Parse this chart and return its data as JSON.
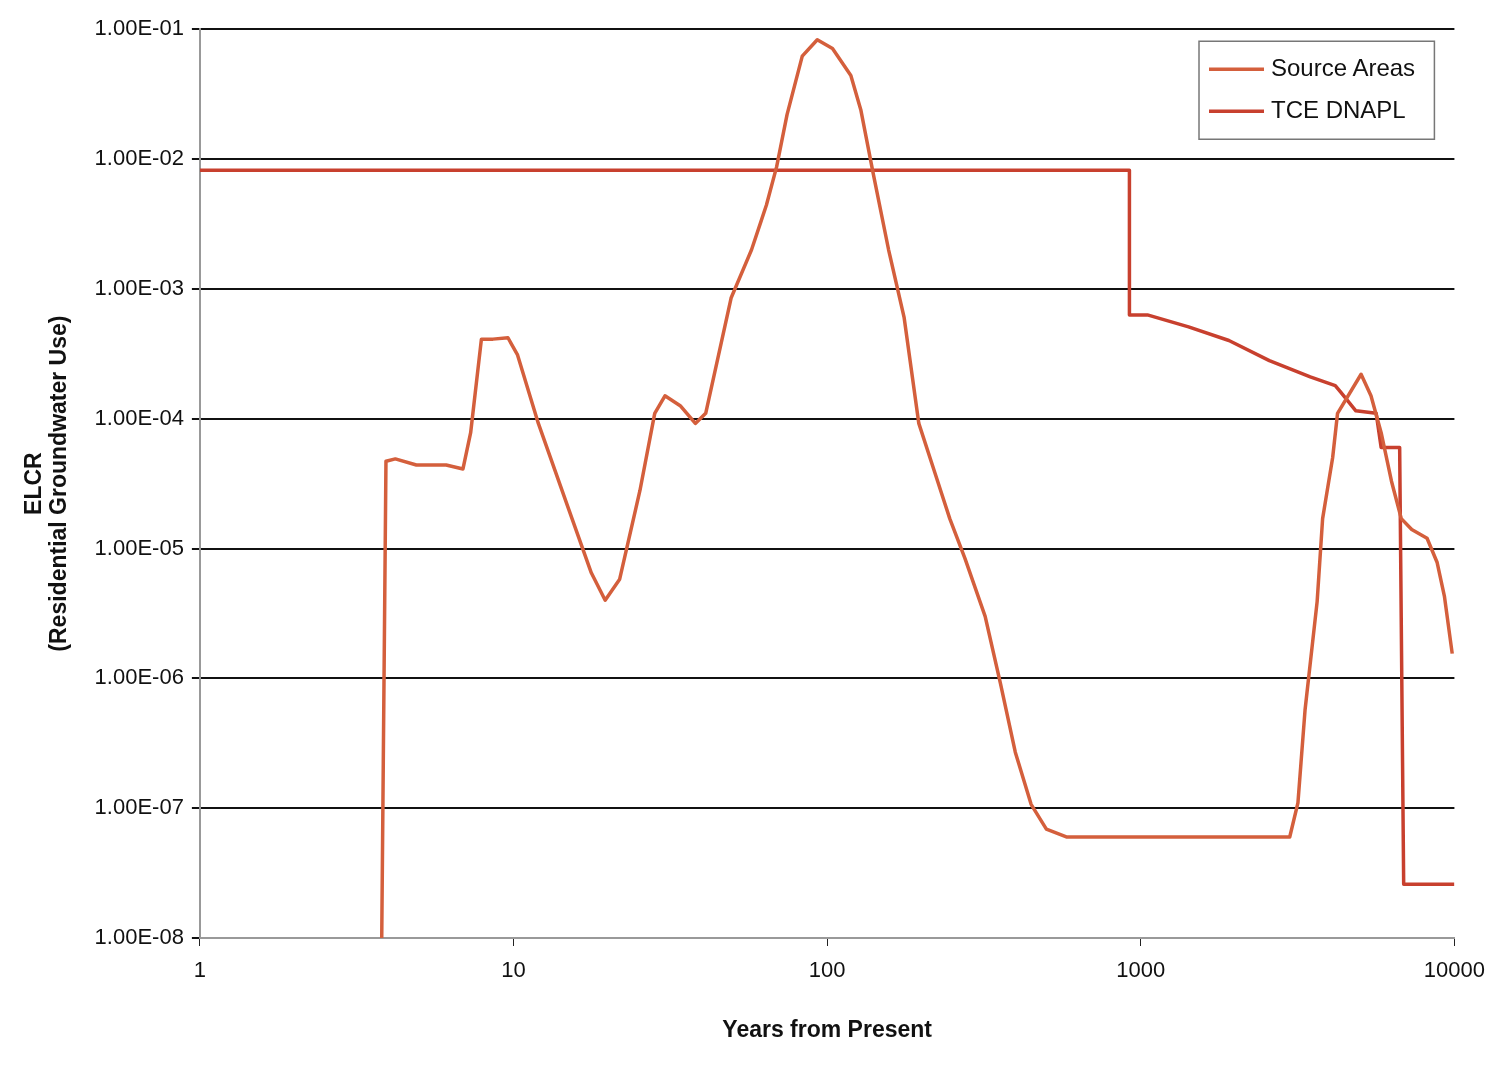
{
  "chart_data": {
    "type": "line",
    "xlabel": "Years from Present",
    "ylabel": "ELCR\n(Residential Groundwater Use)",
    "log": "xy",
    "grid": "y",
    "legend": "top right",
    "marker": "none",
    "line_style": "solid",
    "xlim": [
      1,
      10000
    ],
    "xticks": [
      1,
      10,
      100,
      1000,
      10000
    ],
    "ylim": [
      1e-08,
      0.1
    ],
    "yticks": [
      {
        "value": 1e-08,
        "label": "1.00E-08"
      },
      {
        "value": 1e-07,
        "label": "1.00E-07"
      },
      {
        "value": 1e-06,
        "label": "1.00E-06"
      },
      {
        "value": 1e-05,
        "label": "1.00E-05"
      },
      {
        "value": 0.0001,
        "label": "1.00E-04"
      },
      {
        "value": 0.001,
        "label": "1.00E-03"
      },
      {
        "value": 0.01,
        "label": "1.00E-02"
      },
      {
        "value": 0.1,
        "label": "1.00E-01"
      }
    ],
    "series": [
      {
        "name": "Source Areas",
        "color": "#d45f3c",
        "x": [
          3.8,
          3.92,
          4.2,
          4.9,
          6.1,
          6.9,
          7.3,
          7.9,
          8.6,
          9.6,
          10.3,
          12,
          15,
          17.7,
          19.6,
          21.8,
          25.3,
          28.2,
          30.4,
          34,
          38,
          41,
          49.4,
          57.4,
          64,
          69,
          74.5,
          83.3,
          93,
          104,
          119,
          128,
          140,
          157,
          176,
          196,
          220,
          246,
          275,
          319,
          357,
          398,
          447,
          500,
          579,
          2985,
          3170,
          3340,
          3650,
          3800,
          4090,
          4240,
          5040,
          5420,
          5840,
          6300,
          6770,
          7310,
          8180,
          8810,
          9290,
          9840
        ],
        "values": [
          1e-08,
          4.7e-05,
          4.9e-05,
          4.4e-05,
          4.4e-05,
          4.1e-05,
          7.8e-05,
          0.00041,
          0.00041,
          0.00042,
          0.00031,
          9.2e-05,
          2e-05,
          6.5e-06,
          4e-06,
          5.8e-06,
          2.8e-05,
          0.00011,
          0.00015,
          0.000126,
          9.2e-05,
          0.00011,
          0.00085,
          0.002,
          0.0044,
          0.0087,
          0.022,
          0.062,
          0.083,
          0.071,
          0.044,
          0.024,
          0.0079,
          0.002,
          0.0006,
          9.2e-05,
          3.9e-05,
          1.7e-05,
          8.4e-06,
          3e-06,
          9.1e-07,
          2.7e-07,
          1.07e-07,
          6.9e-08,
          6e-08,
          6e-08,
          1.1e-07,
          5.7e-07,
          3.9e-06,
          1.7e-05,
          5e-05,
          0.00011,
          0.00022,
          0.00015,
          7.8e-05,
          3.3e-05,
          1.7e-05,
          1.4e-05,
          1.2e-05,
          7.8e-06,
          4.3e-06,
          1.55e-06
        ]
      },
      {
        "name": "TCE DNAPL",
        "color": "#c8402e",
        "x": [
          1,
          920,
          920,
          1050,
          1420,
          1910,
          2570,
          3470,
          4170,
          4340,
          4850,
          5630,
          5840,
          6690,
          6890,
          10000
        ],
        "values": [
          0.0082,
          0.0082,
          0.00063,
          0.00063,
          0.00051,
          0.0004,
          0.00028,
          0.00021,
          0.00018,
          0.00016,
          0.000115,
          0.00011,
          6e-05,
          6e-05,
          2.6e-08,
          2.6e-08
        ]
      }
    ]
  }
}
